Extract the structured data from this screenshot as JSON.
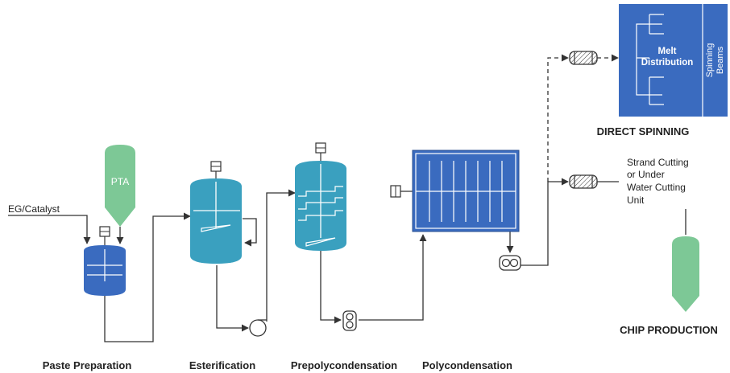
{
  "labels": {
    "eg_catalyst": "EG/Catalyst",
    "pta": "PTA",
    "melt_distribution_1": "Melt",
    "melt_distribution_2": "Distribution",
    "spinning_beams_1": "Spinning",
    "spinning_beams_2": "Beams",
    "direct_spinning": "DIRECT SPINNING",
    "cutting_1": "Strand Cutting",
    "cutting_2": "or Under",
    "cutting_3": "Water Cutting",
    "cutting_4": "Unit",
    "chip_production": "CHIP PRODUCTION"
  },
  "stages": {
    "paste_preparation": "Paste Preparation",
    "esterification": "Esterification",
    "prepolycondensation": "Prepolycondensation",
    "polycondensation": "Polycondensation"
  },
  "colors": {
    "dark_blue": "#3a6bbf",
    "teal": "#3aa0bf",
    "green": "#7dc896",
    "spinning_blue": "#3a6bbf"
  }
}
